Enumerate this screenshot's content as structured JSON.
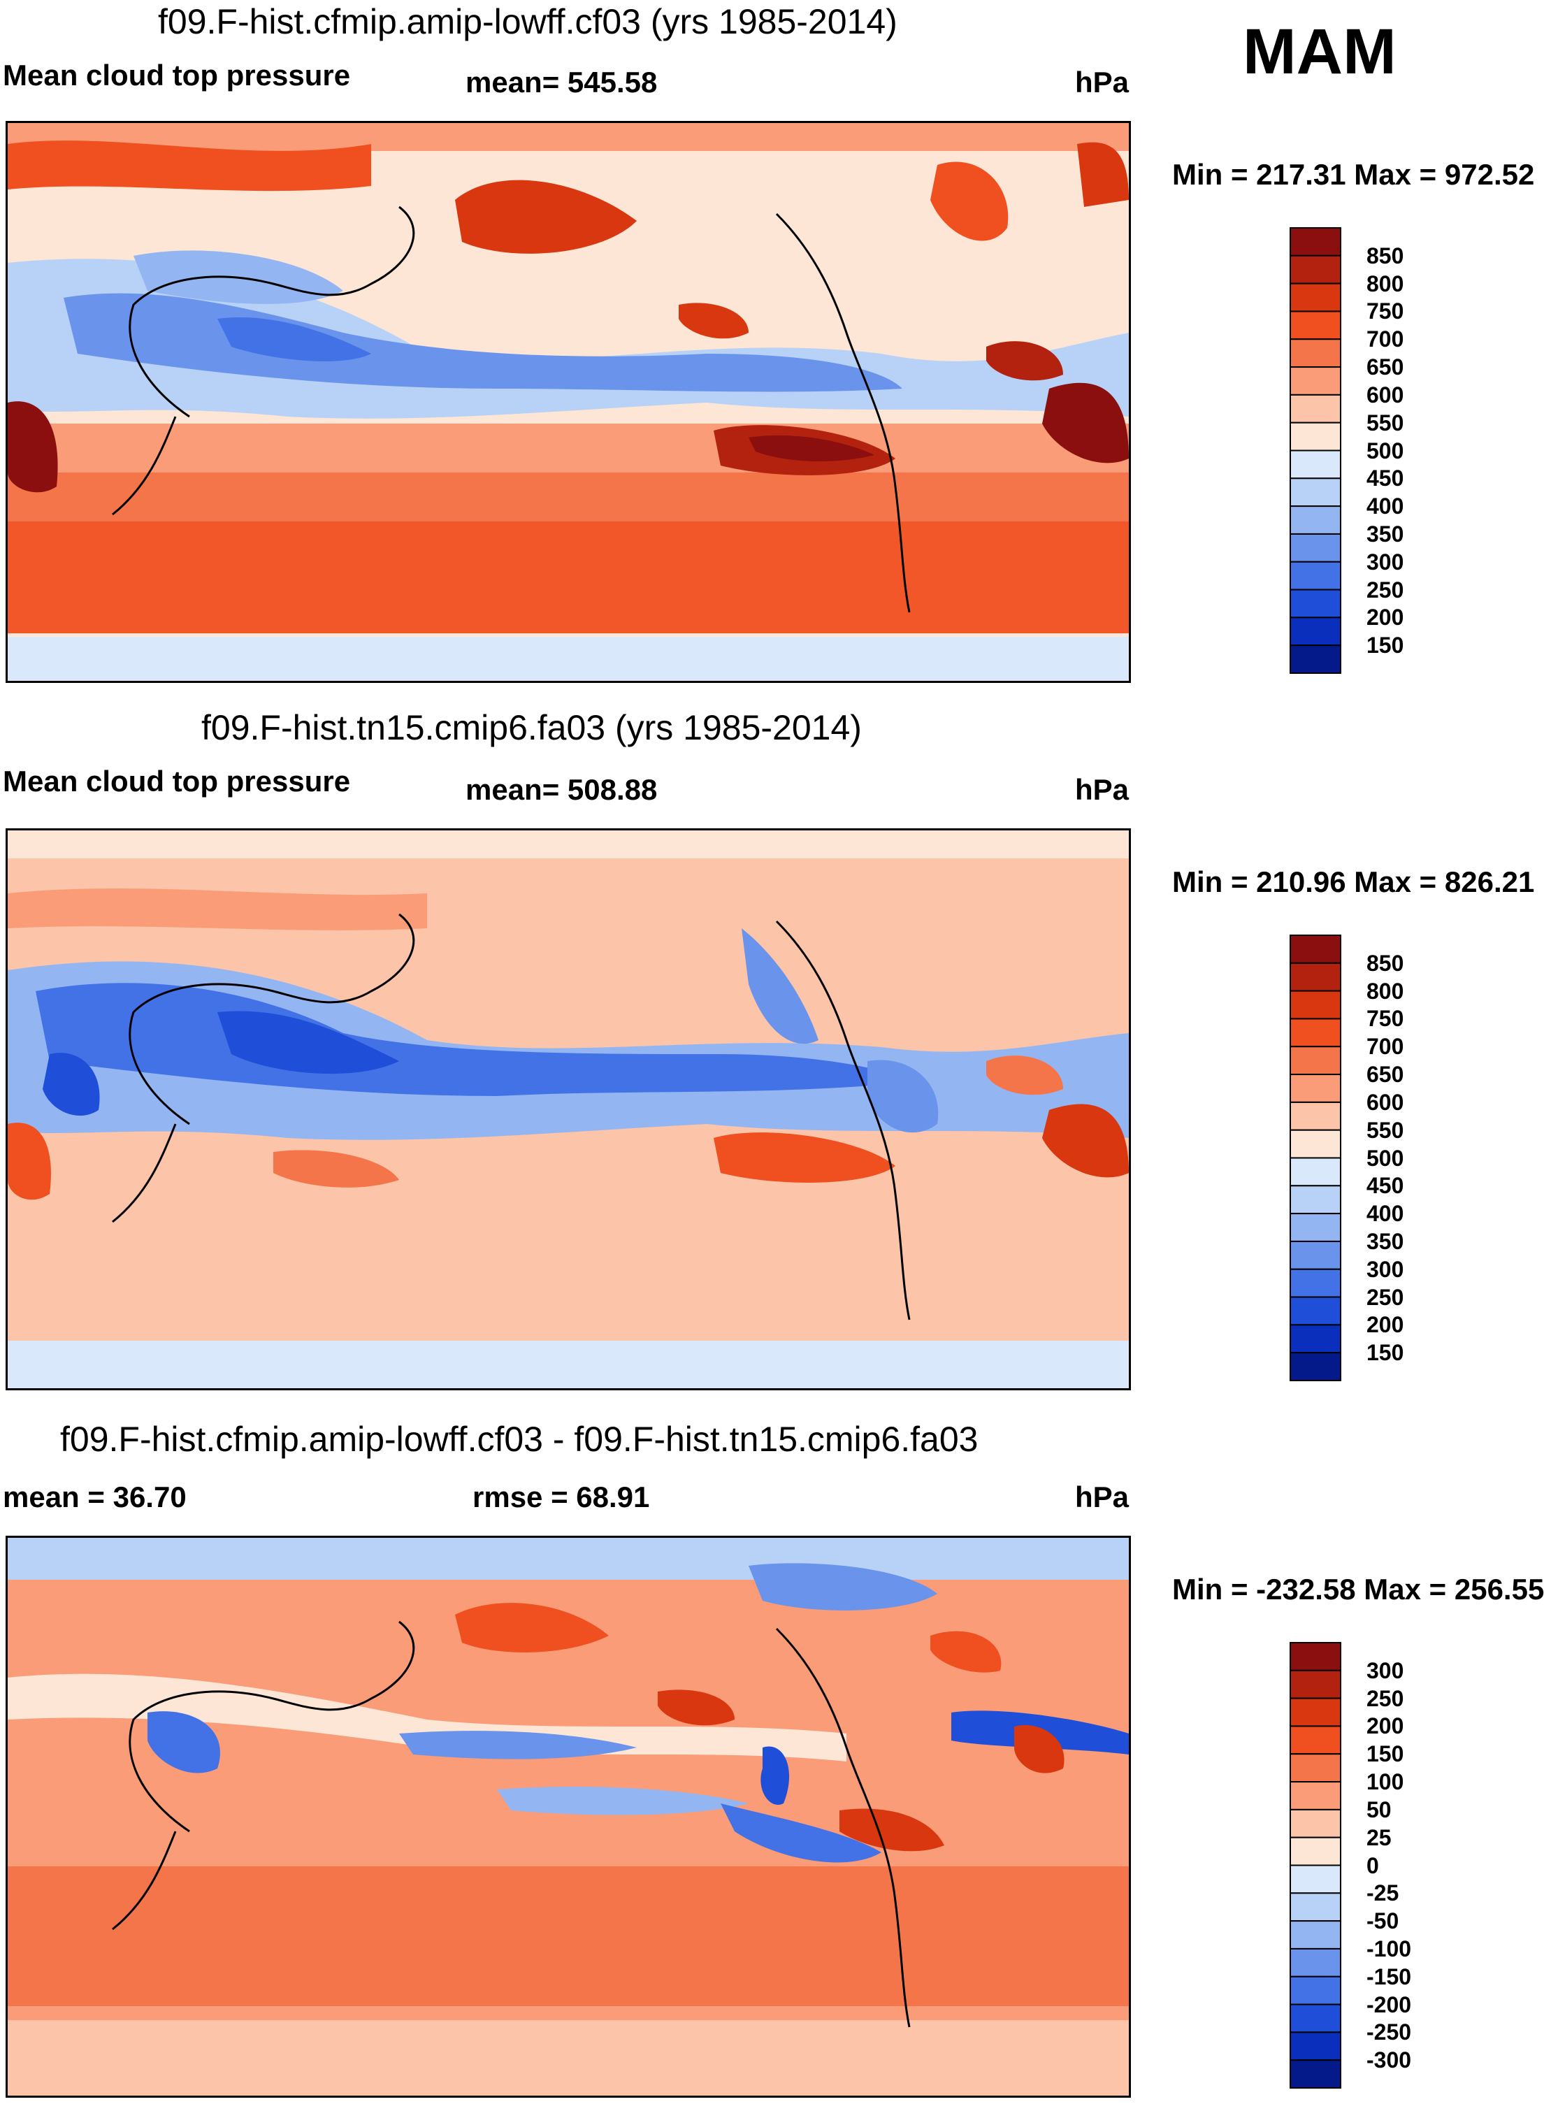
{
  "season": "MAM",
  "panels": [
    {
      "title": "f09.F-hist.cfmip.amip-lowff.cf03 (yrs 1985-2014)",
      "left_label": "Mean cloud top pressure",
      "center_label": "mean= 545.58",
      "units": "hPa",
      "minmax": "Min = 217.31 Max = 972.52",
      "colorbar": {
        "labels": [
          "850",
          "800",
          "750",
          "700",
          "650",
          "600",
          "550",
          "500",
          "450",
          "400",
          "350",
          "300",
          "250",
          "200",
          "150"
        ],
        "colors": [
          "#8b0f0f",
          "#b3220f",
          "#d9370f",
          "#f04f1f",
          "#f5754a",
          "#f99c77",
          "#fcc4a8",
          "#fde6d6",
          "#d9e9fb",
          "#b8d2f7",
          "#93b6f2",
          "#6a93ec",
          "#4372e6",
          "#1f4fd9",
          "#0b2fbd",
          "#041a8a"
        ]
      }
    },
    {
      "title": "f09.F-hist.tn15.cmip6.fa03 (yrs 1985-2014)",
      "left_label": "Mean cloud top pressure",
      "center_label": "mean= 508.88",
      "units": "hPa",
      "minmax": "Min = 210.96 Max = 826.21",
      "colorbar": {
        "labels": [
          "850",
          "800",
          "750",
          "700",
          "650",
          "600",
          "550",
          "500",
          "450",
          "400",
          "350",
          "300",
          "250",
          "200",
          "150"
        ],
        "colors": [
          "#8b0f0f",
          "#b3220f",
          "#d9370f",
          "#f04f1f",
          "#f5754a",
          "#f99c77",
          "#fcc4a8",
          "#fde6d6",
          "#d9e9fb",
          "#b8d2f7",
          "#93b6f2",
          "#6a93ec",
          "#4372e6",
          "#1f4fd9",
          "#0b2fbd",
          "#041a8a"
        ]
      }
    },
    {
      "title": "f09.F-hist.cfmip.amip-lowff.cf03 - f09.F-hist.tn15.cmip6.fa03",
      "left_label": "mean =  36.70",
      "center_label": "rmse =  68.91",
      "units": "hPa",
      "minmax": "Min = -232.58 Max = 256.55",
      "colorbar": {
        "labels": [
          "300",
          "250",
          "200",
          "150",
          "100",
          "50",
          "25",
          "0",
          "-25",
          "-50",
          "-100",
          "-150",
          "-200",
          "-250",
          "-300"
        ],
        "colors": [
          "#8b0f0f",
          "#b3220f",
          "#d9370f",
          "#f04f1f",
          "#f5754a",
          "#f99c77",
          "#fcc4a8",
          "#fde6d6",
          "#d9e9fb",
          "#b8d2f7",
          "#93b6f2",
          "#6a93ec",
          "#4372e6",
          "#1f4fd9",
          "#0b2fbd",
          "#041a8a"
        ]
      }
    }
  ]
}
